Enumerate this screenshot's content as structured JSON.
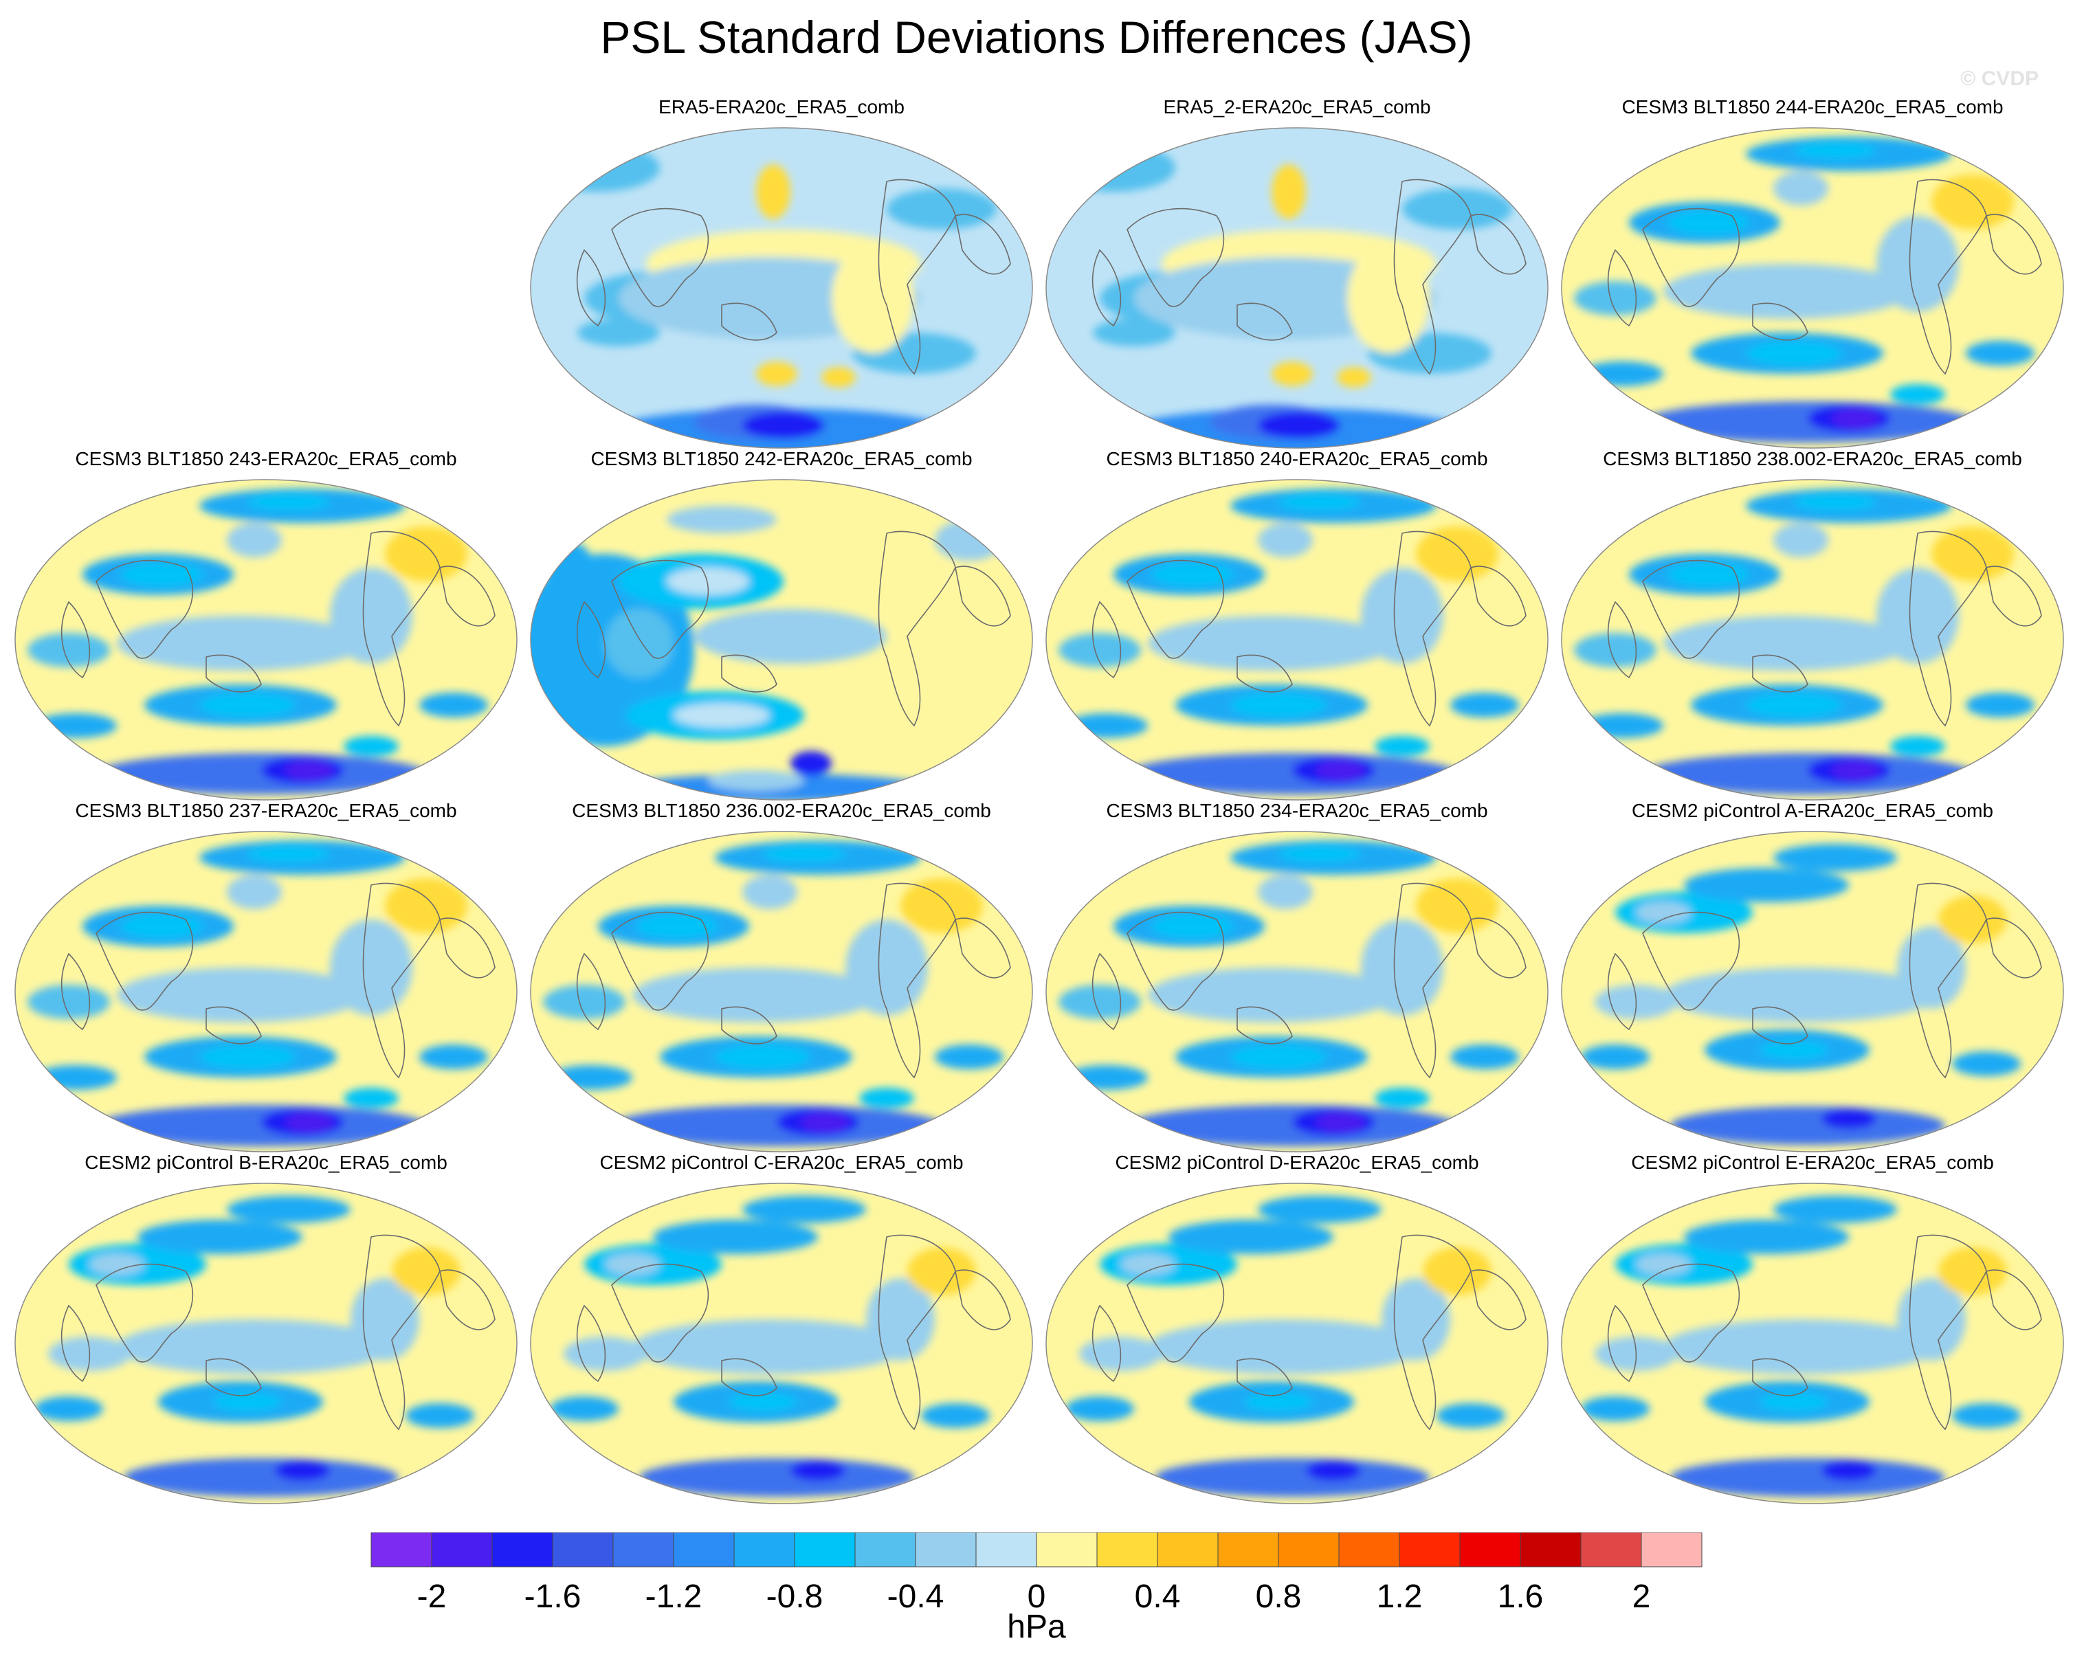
{
  "title": "PSL Standard Deviations Differences (JAS)",
  "watermark": "© CVDP",
  "panels": [
    {
      "label": "ERA5-ERA20c_ERA5_comb",
      "pattern": "obs"
    },
    {
      "label": "ERA5_2-ERA20c_ERA5_comb",
      "pattern": "obs"
    },
    {
      "label": "CESM3 BLT1850 244-ERA20c_ERA5_comb",
      "pattern": "model"
    },
    {
      "label": "CESM3 BLT1850 243-ERA20c_ERA5_comb",
      "pattern": "model"
    },
    {
      "label": "CESM3 BLT1850 242-ERA20c_ERA5_comb",
      "pattern": "warm"
    },
    {
      "label": "CESM3 BLT1850 240-ERA20c_ERA5_comb",
      "pattern": "model"
    },
    {
      "label": "CESM3 BLT1850 238.002-ERA20c_ERA5_comb",
      "pattern": "model"
    },
    {
      "label": "CESM3 BLT1850 237-ERA20c_ERA5_comb",
      "pattern": "model"
    },
    {
      "label": "CESM3 BLT1850 236.002-ERA20c_ERA5_comb",
      "pattern": "model"
    },
    {
      "label": "CESM3 BLT1850 234-ERA20c_ERA5_comb",
      "pattern": "model"
    },
    {
      "label": "CESM2 piControl A-ERA20c_ERA5_comb",
      "pattern": "cesm2"
    },
    {
      "label": "CESM2 piControl B-ERA20c_ERA5_comb",
      "pattern": "cesm2"
    },
    {
      "label": "CESM2 piControl C-ERA20c_ERA5_comb",
      "pattern": "cesm2"
    },
    {
      "label": "CESM2 piControl D-ERA20c_ERA5_comb",
      "pattern": "cesm2"
    },
    {
      "label": "CESM2 piControl E-ERA20c_ERA5_comb",
      "pattern": "cesm2"
    }
  ],
  "colorbar": {
    "units": "hPa",
    "colors": [
      "#7b2cf0",
      "#4a1ef0",
      "#1e1ef5",
      "#3a58e6",
      "#3c72ee",
      "#2b8cf5",
      "#1eaaf5",
      "#00c3f8",
      "#55c0ee",
      "#98cfee",
      "#bfe3f6",
      "#fff7a0",
      "#ffdc3a",
      "#ffc21e",
      "#ffa20a",
      "#ff8a00",
      "#ff6400",
      "#ff2800",
      "#ee0000",
      "#c80000",
      "#e04848",
      "#ffb4b4"
    ],
    "labels": [
      "-2",
      "-1.6",
      "-1.2",
      "-0.8",
      "-0.4",
      "0",
      "0.4",
      "0.8",
      "1.2",
      "1.6",
      "2"
    ]
  }
}
